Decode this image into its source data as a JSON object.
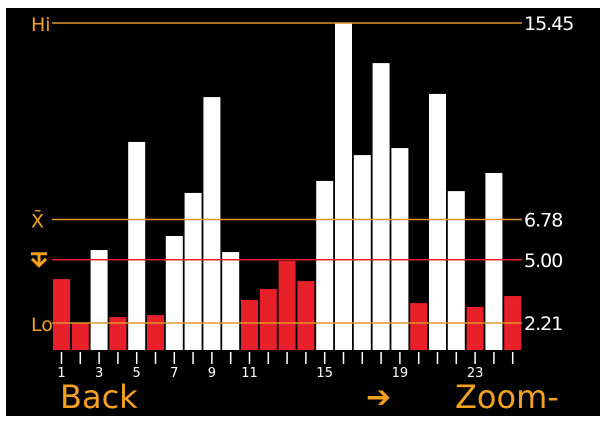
{
  "chart_data": {
    "type": "bar",
    "categories": [
      "1",
      "2",
      "3",
      "4",
      "5",
      "6",
      "7",
      "8",
      "9",
      "10",
      "11",
      "12",
      "13",
      "14",
      "15",
      "16",
      "17",
      "18",
      "19",
      "20",
      "21",
      "22",
      "23",
      "24",
      "25"
    ],
    "tick_labels": [
      "1",
      "3",
      "5",
      "7",
      "9",
      "11",
      "15",
      "19",
      "23"
    ],
    "values": [
      4.15,
      2.21,
      5.43,
      2.47,
      10.2,
      2.56,
      6.05,
      7.95,
      12.18,
      5.34,
      3.23,
      3.71,
      4.95,
      4.06,
      8.48,
      15.45,
      9.62,
      13.68,
      9.93,
      3.09,
      12.32,
      8.03,
      2.92,
      8.83,
      3.4
    ],
    "ylim": [
      1.0,
      15.45
    ],
    "grid": false,
    "reference_lines": {
      "hi": {
        "label": "Hi",
        "value_text": "15.45",
        "value": 15.45
      },
      "mean": {
        "label": "X̄",
        "value_text": "6.78",
        "value": 6.78
      },
      "threshold": {
        "icon": "threshold-icon",
        "value_text": "5.00",
        "value": 5.0
      },
      "lo": {
        "label": "Lo",
        "value_text": "2.21",
        "value": 2.21
      }
    },
    "colors": {
      "above": "#ffffff",
      "below": "#e8202a",
      "ref_line": "#e0962a",
      "threshold_line": "#e8202a",
      "label": "#f5a01e",
      "background": "#000000"
    }
  },
  "softkeys": {
    "back": "Back",
    "arrow_icon": "arrow-right-icon",
    "zoom": "Zoom-"
  }
}
